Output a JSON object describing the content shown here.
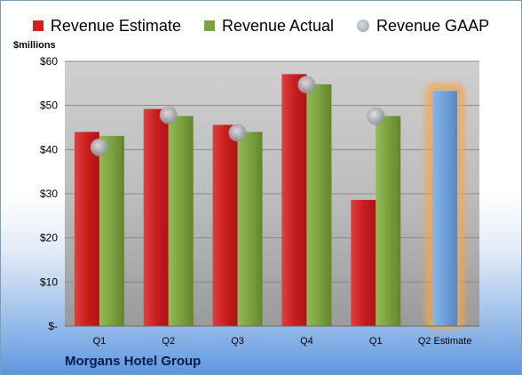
{
  "legend": {
    "estimate": "Revenue Estimate",
    "actual": "Revenue Actual",
    "gaap": "Revenue GAAP"
  },
  "unit_label": "$millions",
  "company": "Morgans Hotel Group",
  "colors": {
    "estimate": "#cc2222",
    "actual": "#7ba23f",
    "gaap": "#9aa0a8",
    "forecast": "#6f9fd8",
    "forecast_glow": "#f5a64a"
  },
  "chart_data": {
    "type": "bar",
    "categories": [
      "Q1",
      "Q2",
      "Q3",
      "Q4",
      "Q1",
      "Q2 Estimate"
    ],
    "series": [
      {
        "name": "Revenue Estimate",
        "values": [
          44,
          49.2,
          45.6,
          57.1,
          28.6,
          null
        ]
      },
      {
        "name": "Revenue Actual",
        "values": [
          43.1,
          47.6,
          44,
          54.8,
          47.6,
          53.3
        ]
      },
      {
        "name": "Revenue GAAP",
        "values": [
          40.5,
          47.8,
          43.8,
          54.7,
          47.6,
          null
        ]
      }
    ],
    "forecast_category": "Q2 Estimate",
    "ylim": [
      0,
      60
    ],
    "yticks": [
      0,
      10,
      20,
      30,
      40,
      50,
      60
    ],
    "ytick_labels": [
      "$-",
      "$10",
      "$20",
      "$30",
      "$40",
      "$50",
      "$60"
    ],
    "ylabel": "$millions",
    "grid": true,
    "legend_position": "top"
  }
}
